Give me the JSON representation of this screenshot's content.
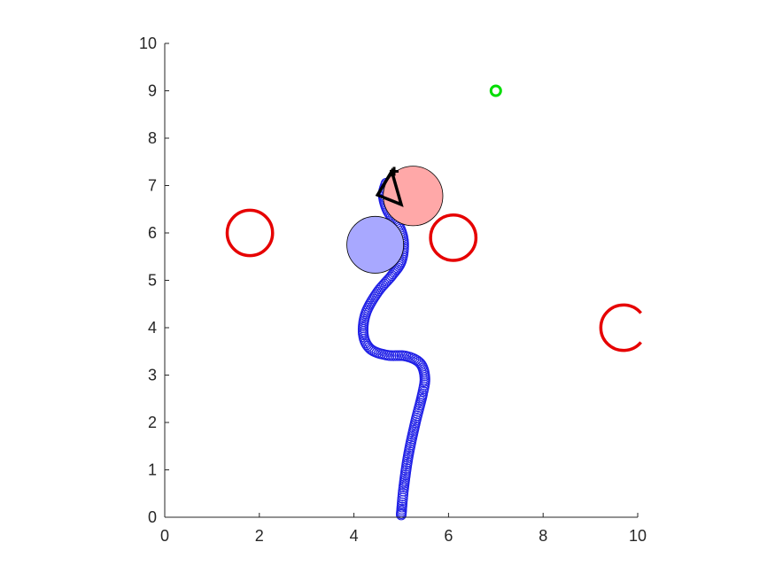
{
  "chart_data": {
    "type": "scatter",
    "title": "",
    "xlabel": "",
    "ylabel": "",
    "xlim": [
      0,
      10
    ],
    "ylim": [
      0,
      10
    ],
    "grid": false,
    "x_ticks": [
      "0",
      "2",
      "4",
      "6",
      "8",
      "10"
    ],
    "y_ticks": [
      "0",
      "1",
      "2",
      "3",
      "4",
      "5",
      "6",
      "7",
      "8",
      "9",
      "10"
    ],
    "trajectory": {
      "marker": "circle",
      "color": "#1f1fe6",
      "waypoints": [
        [
          5.0,
          0.05
        ],
        [
          5.05,
          0.6
        ],
        [
          5.15,
          1.3
        ],
        [
          5.3,
          2.0
        ],
        [
          5.45,
          2.6
        ],
        [
          5.5,
          2.95
        ],
        [
          5.4,
          3.25
        ],
        [
          5.1,
          3.4
        ],
        [
          4.7,
          3.42
        ],
        [
          4.35,
          3.55
        ],
        [
          4.2,
          3.85
        ],
        [
          4.25,
          4.3
        ],
        [
          4.5,
          4.75
        ],
        [
          4.8,
          5.1
        ],
        [
          5.0,
          5.4
        ],
        [
          5.05,
          5.8
        ],
        [
          4.95,
          6.15
        ],
        [
          4.72,
          6.45
        ],
        [
          4.62,
          6.8
        ],
        [
          4.68,
          7.05
        ]
      ]
    },
    "obstacles": [
      {
        "x": 1.8,
        "y": 6.0,
        "r": 0.48,
        "color": "#e60000",
        "shape": "ring"
      },
      {
        "x": 6.1,
        "y": 5.9,
        "r": 0.48,
        "color": "#e60000",
        "shape": "ring"
      },
      {
        "x": 9.7,
        "y": 4.0,
        "r": 0.48,
        "color": "#e60000",
        "shape": "open-ring"
      }
    ],
    "goal": {
      "x": 7.0,
      "y": 9.0,
      "color": "#00dd00"
    },
    "robots": [
      {
        "x": 4.45,
        "y": 5.75,
        "r": 0.6,
        "fill": "#a8a8ff"
      },
      {
        "x": 5.25,
        "y": 6.78,
        "r": 0.63,
        "fill": "#ffa8a8"
      }
    ],
    "agent": {
      "triangle": [
        [
          4.8,
          7.3
        ],
        [
          4.5,
          6.8
        ],
        [
          5.0,
          6.6
        ]
      ],
      "cross": {
        "x": 4.85,
        "y": 7.3
      }
    }
  }
}
